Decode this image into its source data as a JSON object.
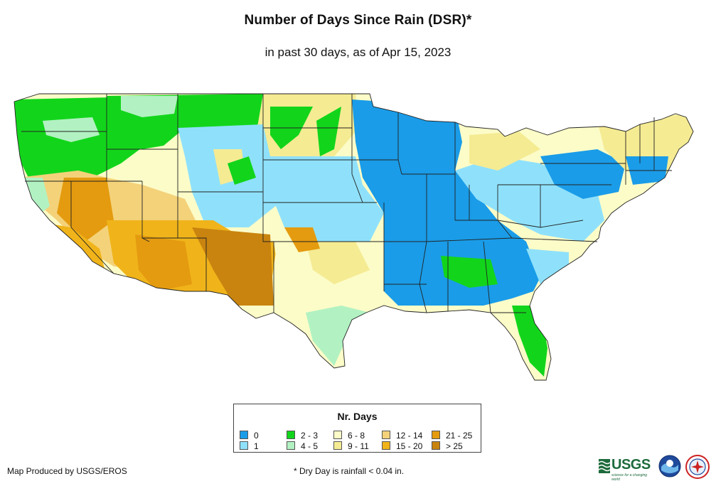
{
  "title": "Number of Days Since Rain (DSR)*",
  "subtitle": "in past 30 days, as of Apr 15, 2023",
  "legend": {
    "title": "Nr. Days",
    "items": [
      {
        "label": "0",
        "color": "#1a9ce8"
      },
      {
        "label": "1",
        "color": "#8fe1fb"
      },
      {
        "label": "2 - 3",
        "color": "#12d51b"
      },
      {
        "label": "4 - 5",
        "color": "#b2f2c2"
      },
      {
        "label": "6 - 8",
        "color": "#fcfcc8"
      },
      {
        "label": "9 - 11",
        "color": "#f5eb93"
      },
      {
        "label": "12 - 14",
        "color": "#f4d27a"
      },
      {
        "label": "15 - 20",
        "color": "#f0b41a"
      },
      {
        "label": "21 - 25",
        "color": "#e49b0f"
      },
      {
        "label": "> 25",
        "color": "#c9840f"
      }
    ]
  },
  "footer": {
    "credit": "Map Produced by USGS/EROS",
    "note": "* Dry Day is rainfall < 0.04 in."
  },
  "logos": {
    "usgs": "USGS",
    "usgs_tagline": "science for a changing world",
    "noaa_icon": "noaa-logo-icon",
    "nws_icon": "nws-logo-icon"
  }
}
